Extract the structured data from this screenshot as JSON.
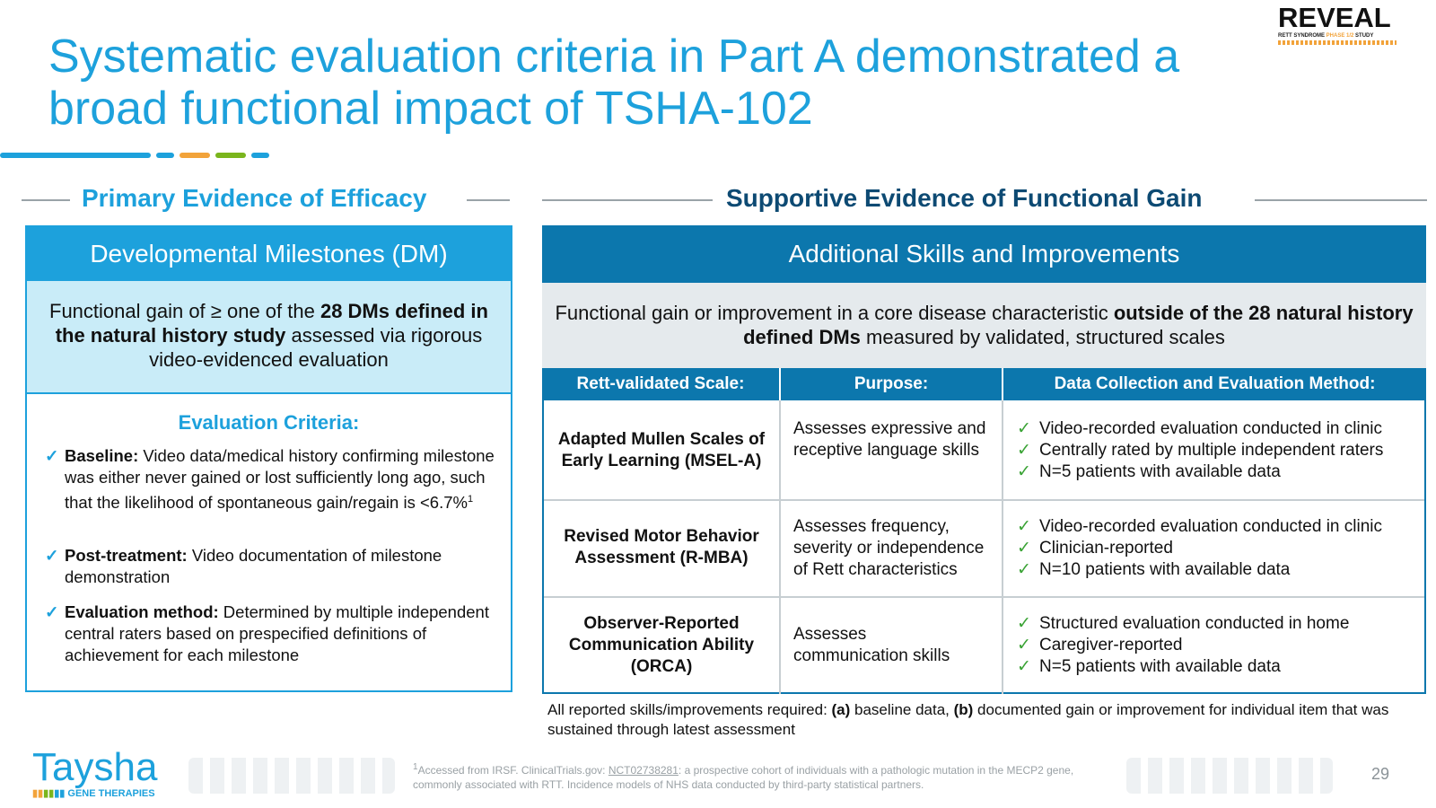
{
  "title": "Systematic evaluation criteria in Part A demonstrated a broad functional impact of TSHA-102",
  "logo": {
    "word": "REVEAL",
    "sub_a": "RETT SYNDROME ",
    "sub_b": "PHASE 1/2",
    "sub_c": " STUDY"
  },
  "left": {
    "section_title": "Primary Evidence of Efficacy",
    "header": "Developmental Milestones (DM)",
    "desc_a": "Functional gain of ≥ one of the ",
    "desc_b": "28 DMs defined in the natural history study",
    "desc_c": " assessed via rigorous video-evidenced evaluation",
    "criteria_title": "Evaluation Criteria:",
    "criteria": [
      {
        "label": "Baseline:",
        "text": " Video data/medical history confirming milestone was either never gained or lost sufficiently long ago, such that the likelihood of spontaneous gain/regain is <6.7%",
        "sup": "1"
      },
      {
        "label": "Post-treatment:",
        "text": " Video documentation of milestone demonstration",
        "sup": ""
      },
      {
        "label": "Evaluation method:",
        "text": " Determined by multiple independent central raters based on prespecified definitions of achievement for each milestone",
        "sup": ""
      }
    ]
  },
  "right": {
    "section_title": "Supportive Evidence of Functional Gain",
    "header": "Additional Skills and Improvements",
    "desc_a": "Functional gain or improvement in a core disease characteristic ",
    "desc_b": "outside of the 28 natural history defined DMs",
    "desc_c": " measured by validated, structured scales",
    "columns": [
      "Rett-validated Scale:",
      "Purpose:",
      "Data Collection and Evaluation Method:"
    ],
    "rows": [
      {
        "scale": "Adapted Mullen Scales of Early Learning (MSEL-A)",
        "purpose": "Assesses expressive and receptive language skills",
        "methods": [
          "Video-recorded evaluation conducted in clinic",
          "Centrally rated by multiple independent raters",
          "N=5 patients with available data"
        ]
      },
      {
        "scale": "Revised Motor Behavior Assessment (R-MBA)",
        "purpose": "Assesses frequency, severity or independence of Rett characteristics",
        "methods": [
          "Video-recorded evaluation conducted in clinic",
          "Clinician-reported",
          "N=10 patients with available data"
        ]
      },
      {
        "scale": "Observer-Reported Communication Ability (ORCA)",
        "purpose": "Assesses communication skills",
        "methods": [
          "Structured evaluation conducted in home",
          "Caregiver-reported",
          "N=5 patients with available data"
        ]
      }
    ],
    "note_a": "All reported skills/improvements required: ",
    "note_b": "(a)",
    "note_c": " baseline data, ",
    "note_d": "(b)",
    "note_e": " documented gain or improvement for individual item that was sustained through latest assessment"
  },
  "footer": {
    "brand": "Taysha",
    "brand_sub": "GENE THERAPIES",
    "ref_sup": "1",
    "ref_a": "Accessed from IRSF. ClinicalTrials.gov: ",
    "ref_link": "NCT02738281",
    "ref_b": ": a prospective cohort of individuals with a pathologic mutation in the MECP2 gene, commonly associated with RTT. Incidence models of NHS data conducted by third-party statistical partners.",
    "page": "29"
  },
  "colors": {
    "title_blue": "#1da1dc",
    "dark_blue": "#0c77ad",
    "navy": "#0d4a73",
    "light_cyan": "#c9ecf8",
    "grey_band": "#e5eaed",
    "check_green": "#3aa335",
    "accent_orange": "#f2a33a",
    "accent_green": "#7ab51d"
  }
}
